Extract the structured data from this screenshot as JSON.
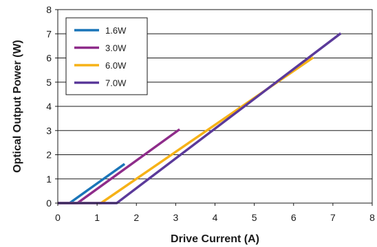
{
  "chart_data": {
    "type": "line",
    "title": "",
    "xlabel": "Drive Current (A)",
    "ylabel": "Optical Output Power (W)",
    "xlim": [
      0,
      8
    ],
    "ylim": [
      0,
      8
    ],
    "xticks": [
      "0",
      "1",
      "2",
      "3",
      "4",
      "5",
      "6",
      "7",
      "8"
    ],
    "yticks": [
      "0",
      "1",
      "2",
      "3",
      "4",
      "5",
      "6",
      "7",
      "8"
    ],
    "grid": "horizontal",
    "legend_position": "top-left",
    "series": [
      {
        "name": "1.6W",
        "color": "#1a75b8",
        "points": [
          [
            0,
            0
          ],
          [
            0.3,
            0
          ],
          [
            1.7,
            1.62
          ]
        ]
      },
      {
        "name": "3.0W",
        "color": "#8e2c8a",
        "points": [
          [
            0,
            0
          ],
          [
            0.5,
            0
          ],
          [
            3.1,
            3.05
          ]
        ]
      },
      {
        "name": "6.0W",
        "color": "#f6b217",
        "points": [
          [
            0,
            0
          ],
          [
            1.1,
            0
          ],
          [
            6.5,
            6.02
          ]
        ]
      },
      {
        "name": "7.0W",
        "color": "#5b3a9a",
        "points": [
          [
            0,
            0
          ],
          [
            1.5,
            0
          ],
          [
            7.2,
            7.02
          ]
        ]
      }
    ]
  }
}
